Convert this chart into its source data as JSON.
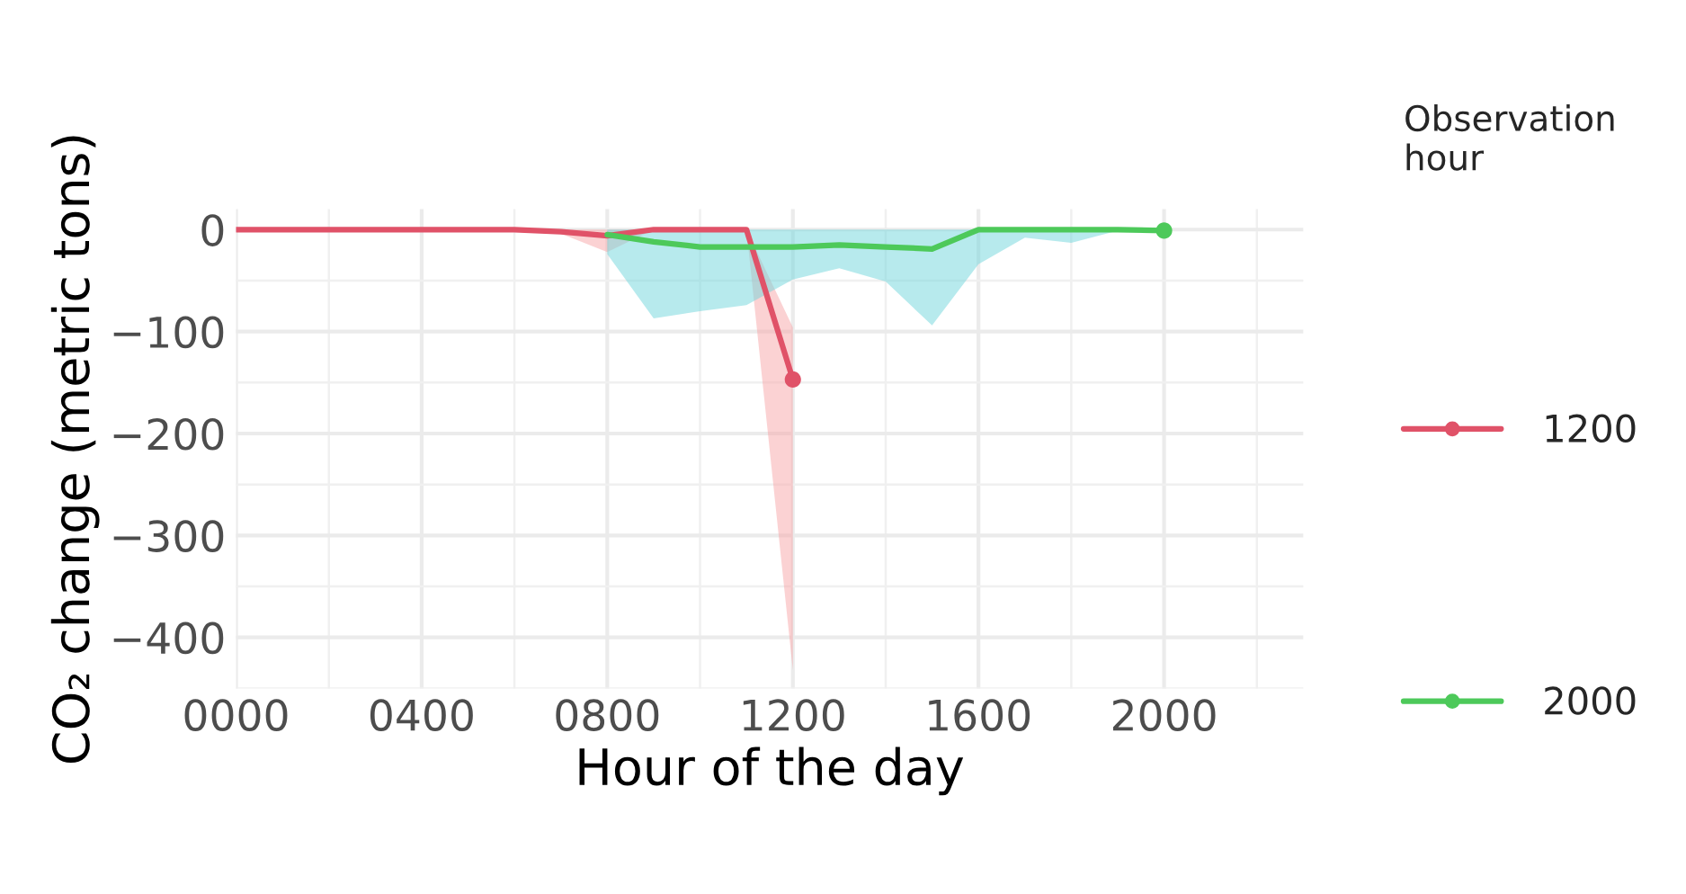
{
  "chart_data": {
    "type": "line",
    "xlabel": "Hour of the day",
    "ylabel": "CO₂ change (metric tons)",
    "legend_title": "Observation hour",
    "xlim": [
      0,
      2300
    ],
    "ylim": [
      -450,
      20
    ],
    "xticks": [
      {
        "value": 0,
        "label": "0000"
      },
      {
        "value": 400,
        "label": "0400"
      },
      {
        "value": 800,
        "label": "0800"
      },
      {
        "value": 1200,
        "label": "1200"
      },
      {
        "value": 1600,
        "label": "1600"
      },
      {
        "value": 2000,
        "label": "2000"
      }
    ],
    "yticks": [
      0,
      {
        "value": -100,
        "label": "−100"
      },
      {
        "value": -200,
        "label": "−200"
      },
      {
        "value": -300,
        "label": "−300"
      },
      {
        "value": -400,
        "label": "−400"
      }
    ],
    "grid": true,
    "legend": "right",
    "line_style": "solid",
    "series": [
      {
        "name": "1200",
        "color": "#e05268",
        "x": [
          0,
          100,
          200,
          300,
          400,
          500,
          600,
          700,
          800,
          900,
          1000,
          1100,
          1200
        ],
        "values": [
          0,
          0,
          0,
          0,
          0,
          0,
          0,
          -2,
          -6,
          0,
          0,
          0,
          -147
        ],
        "lower": [
          0,
          0,
          0,
          0,
          0,
          0,
          0,
          -4,
          -22,
          0,
          0,
          0,
          -432
        ],
        "upper": [
          0,
          0,
          0,
          0,
          0,
          0,
          0,
          0,
          0,
          0,
          0,
          0,
          -96
        ]
      },
      {
        "name": "2000",
        "color": "#4dc95a",
        "x": [
          800,
          900,
          1000,
          1100,
          1200,
          1300,
          1400,
          1500,
          1600,
          1700,
          1800,
          1900,
          2000
        ],
        "values": [
          -5,
          -12,
          -17,
          -17,
          -17,
          -15,
          -17,
          -19,
          0,
          0,
          0,
          0,
          -1
        ],
        "lower": [
          -24,
          -87,
          -80,
          -74,
          -49,
          -38,
          -51,
          -94,
          -34,
          -8,
          -13,
          -1,
          0
        ],
        "upper": [
          0,
          0,
          0,
          0,
          0,
          0,
          0,
          0,
          0,
          0,
          0,
          0,
          0
        ]
      },
      {
        "type": "scatter",
        "x": [
          1200,
          2000
        ],
        "values": [
          -147,
          -1
        ],
        "colors": [
          "#e05268",
          "#4dc95a"
        ],
        "marker": "circle"
      }
    ]
  }
}
